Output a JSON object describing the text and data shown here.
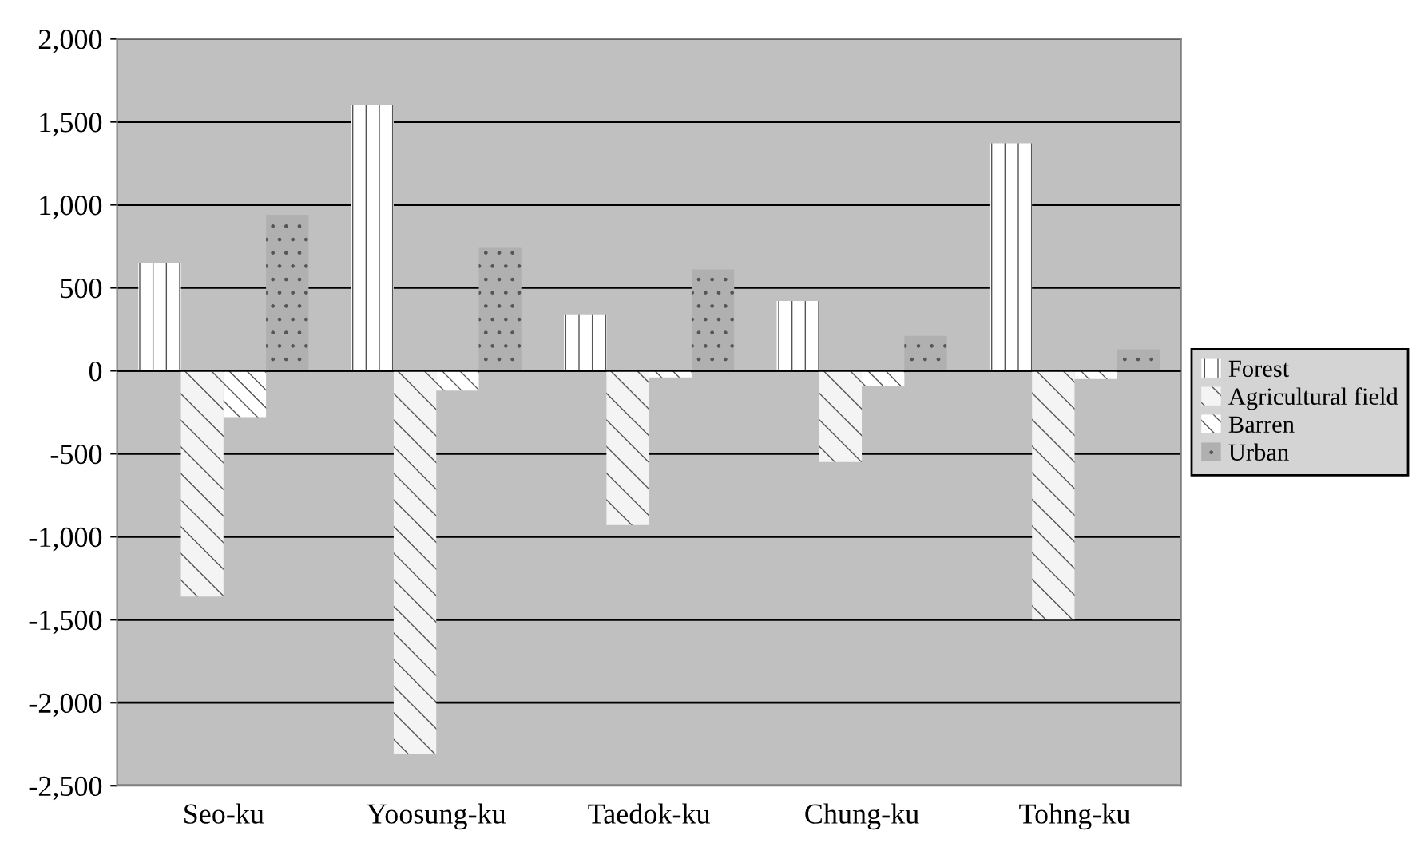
{
  "chart_data": {
    "type": "bar",
    "categories": [
      "Seo-ku",
      "Yoosung-ku",
      "Taedok-ku",
      "Chung-ku",
      "Tohng-ku"
    ],
    "series": [
      {
        "name": "Forest",
        "color": "#ffffff",
        "values": [
          650,
          1600,
          340,
          420,
          1370
        ]
      },
      {
        "name": "Agricultural field",
        "color": "#f4f4f4",
        "values": [
          -1360,
          -2310,
          -930,
          -550,
          -1500
        ]
      },
      {
        "name": "Barren",
        "color": "#ffffff",
        "values": [
          -280,
          -120,
          -40,
          -90,
          -50
        ]
      },
      {
        "name": "Urban",
        "color": "#b0b0b0",
        "values": [
          940,
          740,
          610,
          210,
          130
        ]
      }
    ],
    "ylim": [
      -2500,
      2000
    ],
    "yticks": [
      {
        "value": -2500,
        "label": "-2,500"
      },
      {
        "value": -2000,
        "label": "-2,000"
      },
      {
        "value": -1500,
        "label": "-1,500"
      },
      {
        "value": -1000,
        "label": "-1,000"
      },
      {
        "value": -500,
        "label": "-500"
      },
      0,
      500,
      {
        "value": 1000,
        "label": "1,000"
      },
      {
        "value": 1500,
        "label": "1,500"
      },
      {
        "value": 2000,
        "label": "2,000"
      }
    ],
    "grid": "y",
    "legend": "right"
  }
}
